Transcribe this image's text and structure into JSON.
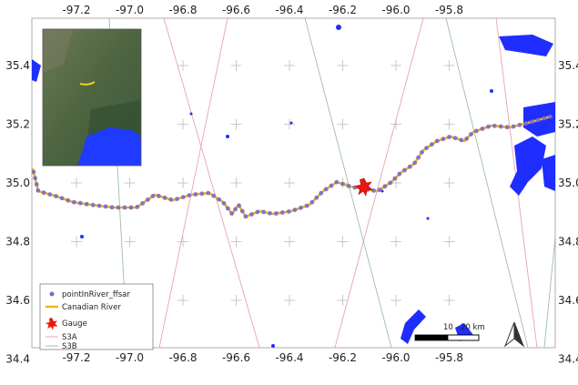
{
  "map": {
    "x_ticks": [
      "-97.2",
      "-97.0",
      "-96.8",
      "-96.6",
      "-96.4",
      "-96.2",
      "-96.0",
      "-95.8"
    ],
    "y_ticks": [
      "35.4",
      "35.2",
      "35.0",
      "34.8",
      "34.6",
      "34.4"
    ],
    "legend": {
      "items": [
        {
          "label": "pointInRiver_ffsar",
          "color": "#7a6cc8"
        },
        {
          "label": "Canadian River",
          "color": "#f2b21c"
        },
        {
          "label": "Gauge",
          "color": "#e8190f"
        },
        {
          "label": "S3A",
          "color": "#e8a3b4"
        },
        {
          "label": "S3B",
          "color": "#9bc29a"
        }
      ]
    },
    "scale_bar": {
      "labels": [
        "10",
        "20 km"
      ]
    },
    "north_arrow": "north-arrow-icon",
    "colors": {
      "water": "#1f2dff",
      "river": "#f2b21c",
      "points": "#7a6cc8",
      "gauge": "#e8190f",
      "s3a": "#e8a3b4",
      "s3b": "#9bc29a"
    }
  }
}
